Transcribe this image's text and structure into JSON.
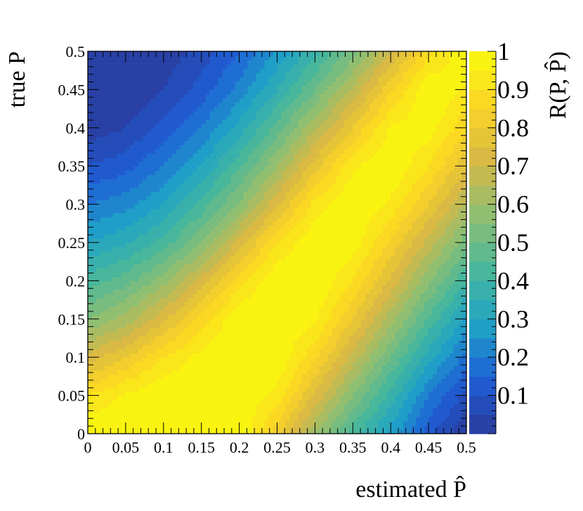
{
  "chart_data": {
    "type": "heatmap",
    "title": "",
    "xlabel": "estimated P̂",
    "ylabel": "true P",
    "zlabel": "R(P, P̂)",
    "xlim": [
      0,
      0.5
    ],
    "ylim": [
      0,
      0.5
    ],
    "zlim": [
      0,
      1
    ],
    "x_ticks": [
      "0",
      "0.05",
      "0.1",
      "0.15",
      "0.2",
      "0.25",
      "0.3",
      "0.35",
      "0.4",
      "0.45",
      "0.5"
    ],
    "y_ticks": [
      "0",
      "0.05",
      "0.1",
      "0.15",
      "0.2",
      "0.25",
      "0.3",
      "0.35",
      "0.4",
      "0.45",
      "0.5"
    ],
    "z_ticks": [
      "0.1",
      "0.2",
      "0.3",
      "0.4",
      "0.5",
      "0.6",
      "0.7",
      "0.8",
      "0.9",
      "1"
    ],
    "contour_levels": 20,
    "colormap": [
      "#2b3a9a",
      "#1f5fd6",
      "#1fa3c7",
      "#49b79a",
      "#8fbf72",
      "#d7b846",
      "#fbd426",
      "#f8fa0d"
    ],
    "grid": false,
    "legend": "colorbar-right",
    "x": [
      0,
      0.05,
      0.1,
      0.15,
      0.2,
      0.25,
      0.3,
      0.35,
      0.4,
      0.45,
      0.5
    ],
    "y": [
      0,
      0.05,
      0.1,
      0.15,
      0.2,
      0.25,
      0.3,
      0.35,
      0.4,
      0.45,
      0.5
    ],
    "z": [
      [
        1.0,
        1.0,
        1.0,
        1.0,
        1.0,
        0.82,
        0.6,
        0.42,
        0.28,
        0.12,
        0.0
      ],
      [
        0.9,
        0.96,
        1.0,
        1.0,
        1.0,
        0.93,
        0.74,
        0.55,
        0.38,
        0.2,
        0.08
      ],
      [
        0.72,
        0.8,
        0.9,
        0.97,
        1.0,
        1.0,
        0.86,
        0.68,
        0.5,
        0.32,
        0.18
      ],
      [
        0.55,
        0.62,
        0.74,
        0.87,
        1.0,
        1.0,
        0.96,
        0.8,
        0.62,
        0.44,
        0.28
      ],
      [
        0.42,
        0.48,
        0.58,
        0.72,
        0.88,
        1.0,
        1.0,
        0.9,
        0.74,
        0.56,
        0.4
      ],
      [
        0.3,
        0.34,
        0.42,
        0.55,
        0.72,
        0.9,
        1.0,
        0.98,
        0.84,
        0.68,
        0.52
      ],
      [
        0.2,
        0.23,
        0.3,
        0.42,
        0.56,
        0.74,
        0.92,
        1.0,
        0.94,
        0.8,
        0.64
      ],
      [
        0.1,
        0.13,
        0.2,
        0.3,
        0.44,
        0.6,
        0.78,
        0.94,
        1.0,
        0.9,
        0.76
      ],
      [
        0.02,
        0.05,
        0.12,
        0.2,
        0.32,
        0.47,
        0.64,
        0.8,
        0.96,
        0.98,
        0.86
      ],
      [
        0.0,
        0.0,
        0.05,
        0.12,
        0.22,
        0.35,
        0.5,
        0.66,
        0.84,
        1.0,
        0.94
      ],
      [
        0.0,
        0.0,
        0.02,
        0.07,
        0.15,
        0.26,
        0.38,
        0.52,
        0.7,
        0.88,
        1.0
      ]
    ]
  }
}
